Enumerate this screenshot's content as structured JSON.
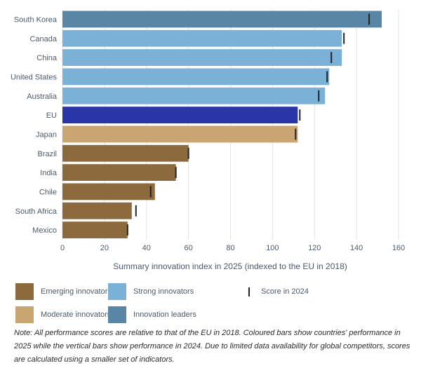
{
  "chart_data": {
    "type": "bar",
    "orientation": "horizontal",
    "xlabel": "Summary innovation index in 2025 (indexed to the EU in 2018)",
    "xlim": [
      0,
      160
    ],
    "xticks": [
      0,
      20,
      40,
      60,
      80,
      100,
      120,
      140,
      160
    ],
    "categories": [
      "South Korea",
      "Canada",
      "China",
      "United States",
      "Australia",
      "EU",
      "Japan",
      "Brazil",
      "India",
      "Chile",
      "South Africa",
      "Mexico"
    ],
    "values_2025": [
      152,
      133,
      133,
      127,
      125,
      112,
      112,
      60,
      54,
      44,
      33,
      31
    ],
    "values_2024": [
      146,
      134,
      128,
      126,
      122,
      113,
      111,
      60,
      54,
      42,
      35,
      31
    ],
    "groups": [
      "leader",
      "strong",
      "strong",
      "strong",
      "strong",
      "eu",
      "moderate",
      "emerging",
      "emerging",
      "emerging",
      "emerging",
      "emerging"
    ],
    "grid": true
  },
  "colors": {
    "leader": "#5a86a6",
    "strong": "#7bb1d6",
    "eu": "#2a35a6",
    "moderate": "#c9a572",
    "emerging": "#8d6a3e",
    "marker": "#222222",
    "grid": "#e3e3e3"
  },
  "legend": {
    "emerging": "Emerging innovators",
    "strong": "Strong innovators",
    "score2024": "Score in 2024",
    "moderate": "Moderate innovators",
    "leaders": "Innovation leaders"
  },
  "note": "Note: All performance scores are relative to that of the EU in 2018. Coloured bars show countries' performance in 2025 while the vertical bars show performance in 2024. Due to limited data availability for global competitors, scores are calculated using a smaller set of indicators."
}
